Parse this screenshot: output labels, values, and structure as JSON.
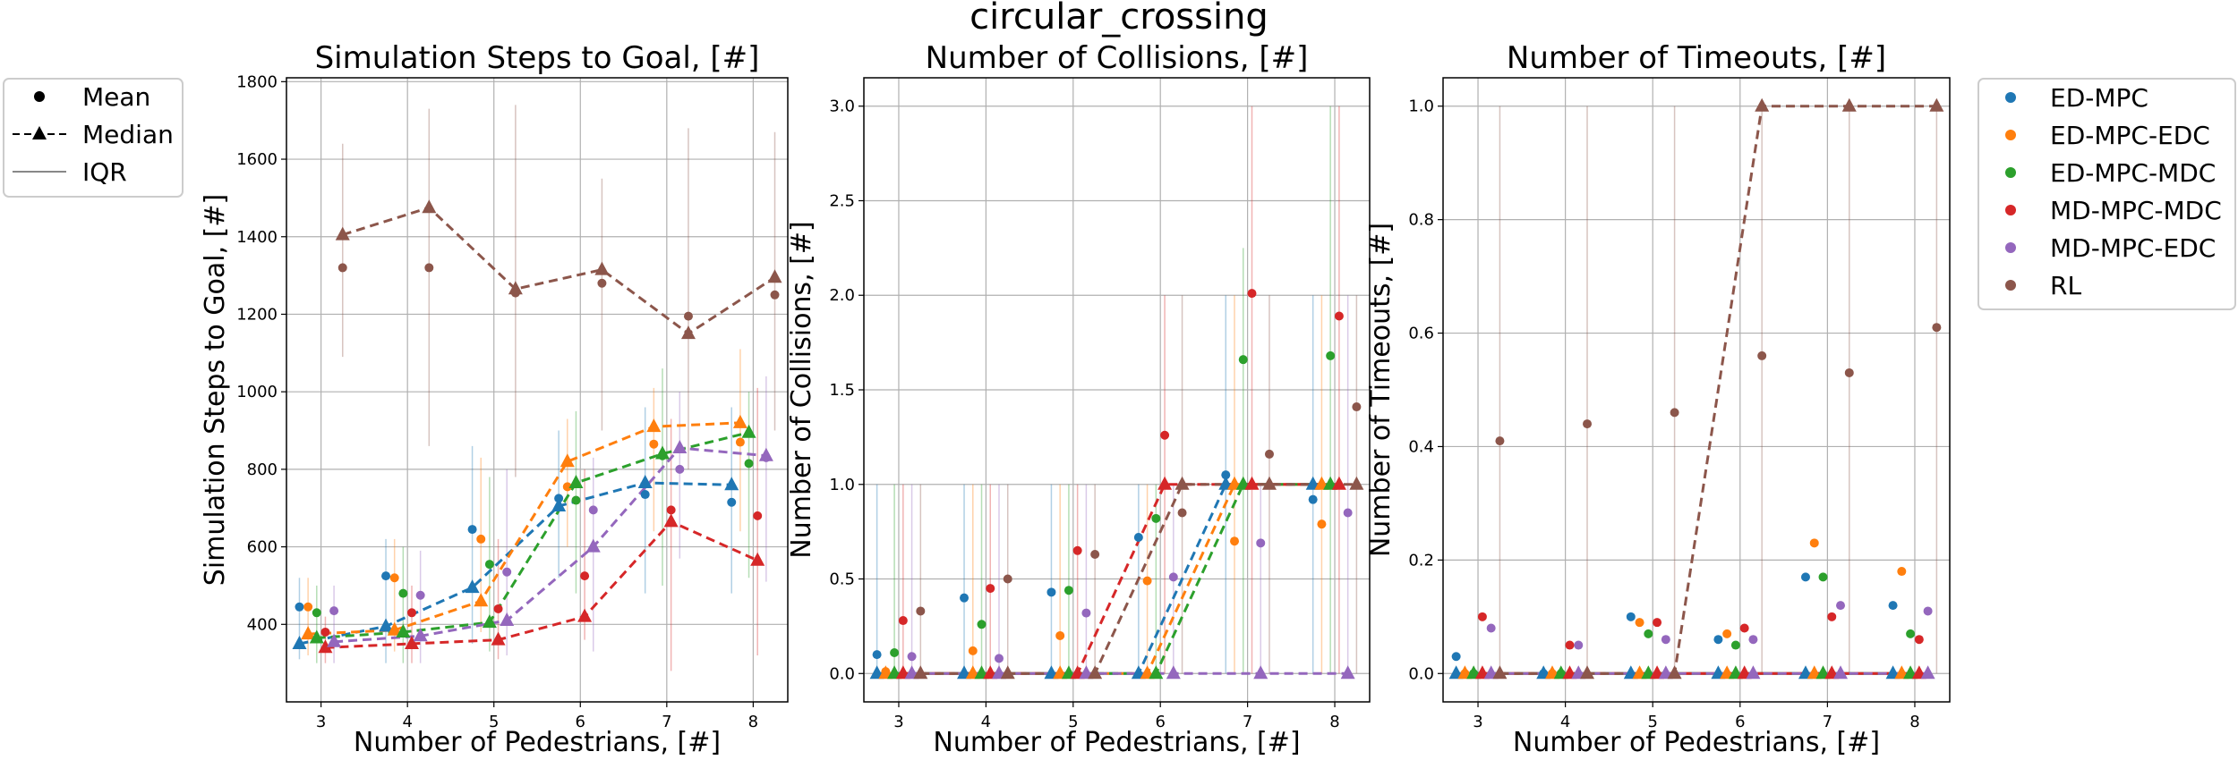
{
  "figure_title": "circular_crossing",
  "style_legend": {
    "mean": "Mean",
    "median": "Median",
    "iqr": "IQR"
  },
  "colors": {
    "ED-MPC": "#1f77b4",
    "ED-MPC-EDC": "#ff7f0e",
    "ED-MPC-MDC": "#2ca02c",
    "MD-MPC-MDC": "#d62728",
    "MD-MPC-EDC": "#9467bd",
    "RL": "#8c564b"
  },
  "chart_data": [
    {
      "type": "scatter",
      "title": "Simulation Steps to Goal, [#]",
      "xlabel": "Number of Pedestrians, [#]",
      "ylabel": "Simulation Steps to Goal, [#]",
      "xlim": [
        2.6,
        8.4
      ],
      "ylim": [
        200,
        1810
      ],
      "xticks": [
        3,
        4,
        5,
        6,
        7,
        8
      ],
      "yticks": [
        400,
        600,
        800,
        1000,
        1200,
        1400,
        1600,
        1800
      ],
      "grid": true,
      "x": [
        3,
        4,
        5,
        6,
        7,
        8
      ],
      "series": [
        {
          "name": "ED-MPC",
          "mean": [
            445,
            525,
            645,
            725,
            735,
            715
          ],
          "median": [
            350,
            395,
            495,
            705,
            765,
            760
          ],
          "iqr_low": [
            310,
            300,
            350,
            520,
            480,
            480
          ],
          "iqr_high": [
            520,
            620,
            860,
            900,
            960,
            960
          ]
        },
        {
          "name": "ED-MPC-EDC",
          "mean": [
            445,
            520,
            620,
            755,
            865,
            870
          ],
          "median": [
            375,
            385,
            460,
            820,
            910,
            920
          ],
          "iqr_low": [
            320,
            330,
            380,
            600,
            640,
            640
          ],
          "iqr_high": [
            520,
            620,
            830,
            930,
            1010,
            1110
          ]
        },
        {
          "name": "ED-MPC-MDC",
          "mean": [
            430,
            480,
            555,
            720,
            835,
            815
          ],
          "median": [
            365,
            380,
            405,
            765,
            840,
            895
          ],
          "iqr_low": [
            300,
            300,
            330,
            480,
            500,
            520
          ],
          "iqr_high": [
            500,
            600,
            780,
            950,
            1060,
            1000
          ]
        },
        {
          "name": "MD-MPC-MDC",
          "mean": [
            380,
            430,
            440,
            525,
            695,
            680
          ],
          "median": [
            340,
            350,
            360,
            420,
            665,
            565
          ],
          "iqr_low": [
            300,
            300,
            310,
            360,
            280,
            320
          ],
          "iqr_high": [
            420,
            500,
            620,
            800,
            930,
            1010
          ]
        },
        {
          "name": "MD-MPC-EDC",
          "mean": [
            435,
            475,
            535,
            695,
            800,
            830
          ],
          "median": [
            355,
            370,
            410,
            600,
            855,
            835
          ],
          "iqr_low": [
            300,
            300,
            320,
            330,
            570,
            510
          ],
          "iqr_high": [
            500,
            590,
            800,
            830,
            1000,
            1040
          ]
        },
        {
          "name": "RL",
          "mean": [
            1320,
            1320,
            1255,
            1280,
            1195,
            1250
          ],
          "median": [
            1405,
            1475,
            1265,
            1315,
            1150,
            1295
          ],
          "iqr_low": [
            1090,
            860,
            780,
            900,
            800,
            900
          ],
          "iqr_high": [
            1640,
            1730,
            1740,
            1550,
            1680,
            1670
          ]
        }
      ]
    },
    {
      "type": "scatter",
      "title": "Number of Collisions, [#]",
      "xlabel": "Number of Pedestrians, [#]",
      "ylabel": "Number of Collisions, [#]",
      "xlim": [
        2.6,
        8.4
      ],
      "ylim": [
        -0.15,
        3.15
      ],
      "xticks": [
        3,
        4,
        5,
        6,
        7,
        8
      ],
      "yticks": [
        0.0,
        0.5,
        1.0,
        1.5,
        2.0,
        2.5,
        3.0
      ],
      "grid": true,
      "x": [
        3,
        4,
        5,
        6,
        7,
        8
      ],
      "series": [
        {
          "name": "ED-MPC",
          "mean": [
            0.1,
            0.4,
            0.43,
            0.72,
            1.05,
            0.92
          ],
          "median": [
            0,
            0,
            0,
            0,
            1,
            1
          ],
          "iqr_low": [
            0,
            0,
            0,
            0,
            0,
            0
          ],
          "iqr_high": [
            1,
            1,
            1,
            1,
            2,
            2
          ]
        },
        {
          "name": "ED-MPC-EDC",
          "mean": [
            0.01,
            0.12,
            0.2,
            0.49,
            0.7,
            0.79
          ],
          "median": [
            0,
            0,
            0,
            0,
            1,
            1
          ],
          "iqr_low": [
            0,
            0,
            0,
            0,
            0,
            0
          ],
          "iqr_high": [
            0,
            1,
            1,
            1,
            2,
            2
          ]
        },
        {
          "name": "ED-MPC-MDC",
          "mean": [
            0.11,
            0.26,
            0.44,
            0.82,
            1.66,
            1.68
          ],
          "median": [
            0,
            0,
            0,
            0,
            1,
            1
          ],
          "iqr_low": [
            0,
            0,
            0,
            0,
            0,
            0
          ],
          "iqr_high": [
            1,
            1,
            1,
            1,
            2.25,
            3
          ]
        },
        {
          "name": "MD-MPC-MDC",
          "mean": [
            0.28,
            0.45,
            0.65,
            1.26,
            2.01,
            1.89
          ],
          "median": [
            0,
            0,
            0,
            1,
            1,
            1
          ],
          "iqr_low": [
            0,
            0,
            0,
            0,
            0,
            0
          ],
          "iqr_high": [
            1,
            1,
            1,
            2,
            3,
            3
          ]
        },
        {
          "name": "MD-MPC-EDC",
          "mean": [
            0.09,
            0.08,
            0.32,
            0.51,
            0.69,
            0.85
          ],
          "median": [
            0,
            0,
            0,
            0,
            0,
            0
          ],
          "iqr_low": [
            0,
            0,
            0,
            0,
            0,
            0
          ],
          "iqr_high": [
            1,
            1,
            1,
            1,
            1,
            2
          ]
        },
        {
          "name": "RL",
          "mean": [
            0.33,
            0.5,
            0.63,
            0.85,
            1.16,
            1.41
          ],
          "median": [
            0,
            0,
            0,
            1,
            1,
            1
          ],
          "iqr_low": [
            0,
            0,
            0,
            0,
            0,
            0
          ],
          "iqr_high": [
            1,
            1,
            1,
            2,
            2,
            2
          ]
        }
      ]
    },
    {
      "type": "scatter",
      "title": "Number of Timeouts, [#]",
      "xlabel": "Number of Pedestrians, [#]",
      "ylabel": "Number of Timeouts, [#]",
      "xlim": [
        2.6,
        8.4
      ],
      "ylim": [
        -0.05,
        1.05
      ],
      "xticks": [
        3,
        4,
        5,
        6,
        7,
        8
      ],
      "yticks": [
        0.0,
        0.2,
        0.4,
        0.6,
        0.8,
        1.0
      ],
      "grid": true,
      "x": [
        3,
        4,
        5,
        6,
        7,
        8
      ],
      "series": [
        {
          "name": "ED-MPC",
          "mean": [
            0.03,
            0.0,
            0.1,
            0.06,
            0.17,
            0.12
          ],
          "median": [
            0,
            0,
            0,
            0,
            0,
            0
          ],
          "iqr_low": [
            0,
            0,
            0,
            0,
            0,
            0
          ],
          "iqr_high": [
            0,
            0,
            0,
            0,
            0,
            0
          ]
        },
        {
          "name": "ED-MPC-EDC",
          "mean": [
            0.0,
            0.0,
            0.09,
            0.07,
            0.23,
            0.18
          ],
          "median": [
            0,
            0,
            0,
            0,
            0,
            0
          ],
          "iqr_low": [
            0,
            0,
            0,
            0,
            0,
            0
          ],
          "iqr_high": [
            0,
            0,
            0,
            0,
            0,
            0
          ]
        },
        {
          "name": "ED-MPC-MDC",
          "mean": [
            0.0,
            0.0,
            0.07,
            0.05,
            0.17,
            0.07
          ],
          "median": [
            0,
            0,
            0,
            0,
            0,
            0
          ],
          "iqr_low": [
            0,
            0,
            0,
            0,
            0,
            0
          ],
          "iqr_high": [
            0,
            0,
            0,
            0,
            0,
            0
          ]
        },
        {
          "name": "MD-MPC-MDC",
          "mean": [
            0.1,
            0.05,
            0.09,
            0.08,
            0.1,
            0.06
          ],
          "median": [
            0,
            0,
            0,
            0,
            0,
            0
          ],
          "iqr_low": [
            0,
            0,
            0,
            0,
            0,
            0
          ],
          "iqr_high": [
            0,
            0,
            0,
            0,
            0,
            0
          ]
        },
        {
          "name": "MD-MPC-EDC",
          "mean": [
            0.08,
            0.05,
            0.06,
            0.06,
            0.12,
            0.11
          ],
          "median": [
            0,
            0,
            0,
            0,
            0,
            0
          ],
          "iqr_low": [
            0,
            0,
            0,
            0,
            0,
            0
          ],
          "iqr_high": [
            0,
            0,
            0,
            0,
            0,
            0
          ]
        },
        {
          "name": "RL",
          "mean": [
            0.41,
            0.44,
            0.46,
            0.56,
            0.53,
            0.61
          ],
          "median": [
            0,
            0,
            0,
            1,
            1,
            1
          ],
          "iqr_low": [
            0,
            0,
            0,
            0,
            0,
            0
          ],
          "iqr_high": [
            1,
            1,
            1,
            1,
            1,
            1
          ]
        }
      ]
    }
  ]
}
